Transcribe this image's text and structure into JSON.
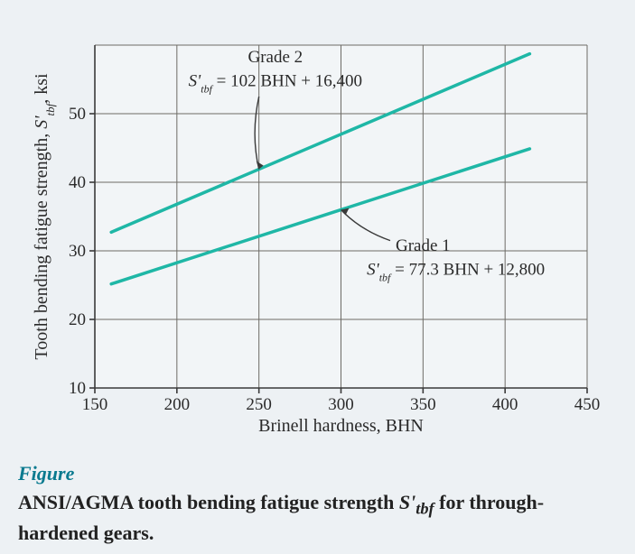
{
  "chart": {
    "type": "line",
    "background_color": "#edf1f4",
    "plot_background_color": "#f2f5f7",
    "grid_color": "#6d6b66",
    "axis_color": "#3a3a3a",
    "line_color": "#1fb7a6",
    "line_width": 3.5,
    "x": {
      "label": "Brinell hardness, BHN",
      "min": 150,
      "max": 450,
      "tick_step": 50,
      "ticks": [
        150,
        200,
        250,
        300,
        350,
        400,
        450
      ]
    },
    "y": {
      "label_plain": "Tooth bending fatigue strength, S'_tbf, ksi",
      "label_prefix": "Tooth bending fatigue strength, ",
      "label_symbol": "S'",
      "label_symbol_sub": "tbf",
      "label_suffix": ", ksi",
      "min": 10,
      "max": 60,
      "tick_step": 10,
      "ticks": [
        10,
        20,
        30,
        40,
        50
      ]
    },
    "series": [
      {
        "name": "Grade 2",
        "slope_per_BHN": 102,
        "intercept_psi": 16400,
        "x_range": [
          160,
          415
        ],
        "y_ksi_at_xmin": 32.72,
        "y_ksi_at_xmax": 58.73
      },
      {
        "name": "Grade 1",
        "slope_per_BHN": 77.3,
        "intercept_psi": 12800,
        "x_range": [
          160,
          415
        ],
        "y_ksi_at_xmin": 25.17,
        "y_ksi_at_xmax": 44.88
      }
    ],
    "annotations": {
      "grade2": {
        "title": "Grade 2",
        "formula_prefix": "S'",
        "formula_sub": "tbf",
        "formula_rest": " = 102 BHN + 16,400"
      },
      "grade1": {
        "title": "Grade 1",
        "formula_prefix": "S'",
        "formula_sub": "tbf",
        "formula_rest": " = 77.3 BHN + 12,800"
      }
    },
    "title_fontsize": 19,
    "tick_fontsize": 19,
    "axis_label_fontsize": 20
  },
  "caption": {
    "label": "Figure",
    "text_before": "ANSI/AGMA tooth bending fatigue strength ",
    "symbol": "S'",
    "symbol_sub": "tbf",
    "text_after": " for through-hardened gears.",
    "label_color": "#0a7a8f",
    "text_color": "#222222",
    "label_fontsize": 22,
    "text_fontsize": 22
  }
}
